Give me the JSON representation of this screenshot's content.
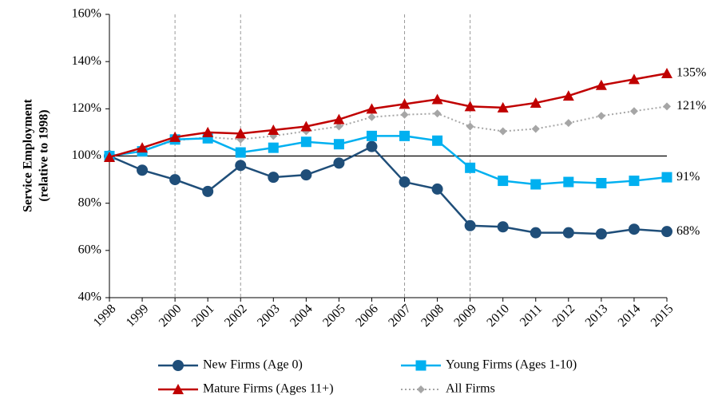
{
  "chart_data": {
    "type": "line",
    "y_label": [
      "Service Employment",
      "(relative to 1998)"
    ],
    "x": [
      1998,
      1999,
      2000,
      2001,
      2002,
      2003,
      2004,
      2005,
      2006,
      2007,
      2008,
      2009,
      2010,
      2011,
      2012,
      2013,
      2014,
      2015
    ],
    "xlim": [
      1998,
      2015
    ],
    "xticks": [
      1998,
      1999,
      2000,
      2001,
      2002,
      2003,
      2004,
      2005,
      2006,
      2007,
      2008,
      2009,
      2010,
      2011,
      2012,
      2013,
      2014,
      2015
    ],
    "ylim": [
      40,
      160
    ],
    "yticks": [
      {
        "value": 40,
        "label": "40%"
      },
      {
        "value": 60,
        "label": "60%"
      },
      {
        "value": 80,
        "label": "80%"
      },
      {
        "value": 100,
        "label": "100%"
      },
      {
        "value": 120,
        "label": "120%"
      },
      {
        "value": 140,
        "label": "140%"
      },
      {
        "value": 160,
        "label": "160%"
      }
    ],
    "reference_y": 100,
    "reference_x": [
      2000,
      2002,
      2007,
      2009
    ],
    "series": [
      {
        "name": "New Firms (Age 0)",
        "color": "#1f4e79",
        "marker": "circle",
        "dash": "solid",
        "values": [
          100,
          94,
          90,
          85,
          96,
          91,
          92,
          97,
          104,
          89,
          86,
          70.5,
          70,
          67.5,
          67.5,
          67,
          69,
          68
        ],
        "value_labels": [
          null,
          null,
          null,
          null,
          null,
          null,
          null,
          null,
          null,
          null,
          null,
          null,
          null,
          null,
          null,
          null,
          null,
          "68%"
        ]
      },
      {
        "name": "Young Firms (Ages 1-10)",
        "color": "#00b0f0",
        "marker": "square",
        "dash": "solid",
        "values": [
          100,
          102,
          107,
          107.5,
          101.5,
          103.5,
          106,
          105,
          108.5,
          108.5,
          106.5,
          95,
          89.5,
          88,
          89,
          88.5,
          89.5,
          91
        ],
        "value_labels": [
          null,
          null,
          null,
          null,
          null,
          null,
          null,
          null,
          null,
          null,
          null,
          null,
          null,
          null,
          null,
          null,
          null,
          "91%"
        ]
      },
      {
        "name": "Mature Firms (Ages 11+)",
        "color": "#c00000",
        "marker": "triangle",
        "dash": "solid",
        "values": [
          99.5,
          103.5,
          108,
          110,
          109.5,
          111,
          112.5,
          115.5,
          120,
          122,
          124,
          121,
          120.5,
          122.5,
          125.5,
          130,
          132.5,
          135
        ],
        "value_labels": [
          null,
          null,
          null,
          null,
          null,
          null,
          null,
          null,
          null,
          null,
          null,
          null,
          null,
          null,
          null,
          null,
          null,
          "135%"
        ]
      },
      {
        "name": "All Firms",
        "color": "#a6a6a6",
        "marker": "diamond",
        "dash": "dotted",
        "values": [
          100,
          102.5,
          106.5,
          108,
          107,
          108.5,
          110.5,
          112.5,
          116.5,
          117.5,
          118,
          112.5,
          110.5,
          111.5,
          114,
          117,
          119,
          121
        ],
        "value_labels": [
          null,
          null,
          null,
          null,
          null,
          null,
          null,
          null,
          null,
          null,
          null,
          null,
          null,
          null,
          null,
          null,
          null,
          "121%"
        ]
      }
    ]
  }
}
